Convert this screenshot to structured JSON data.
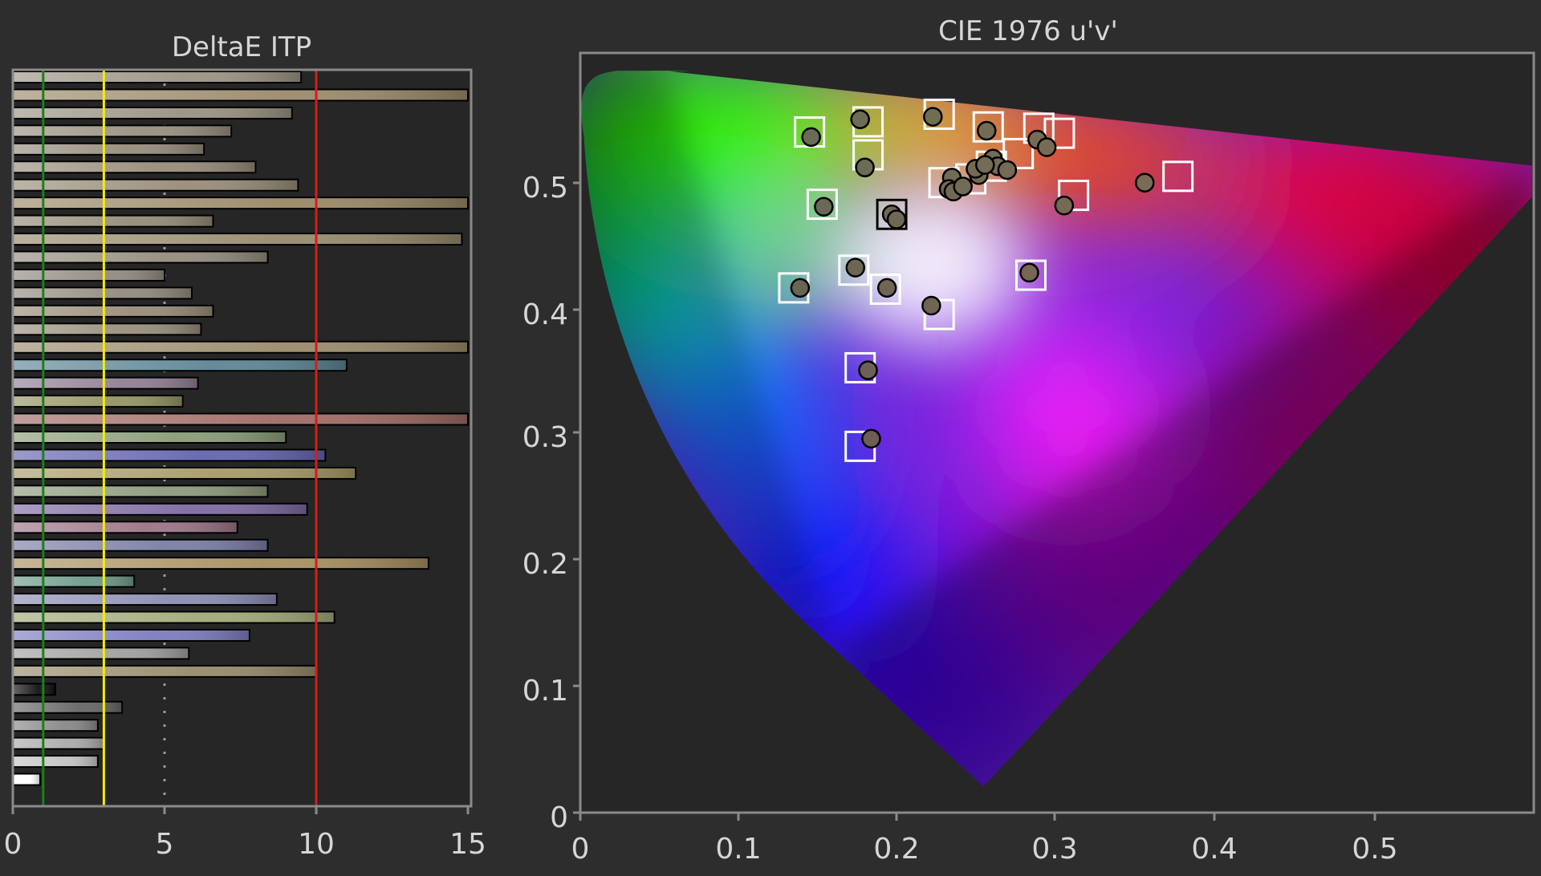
{
  "colors": {
    "background": "#2d2d2d",
    "plot_background": "#262626",
    "frame": "#8a8a8a",
    "good_line": "#1e7d1e",
    "ok_line": "#f3ec00",
    "bad_line": "#d21d1d",
    "target_marker": "#ffffff",
    "measured_marker": "#000000"
  },
  "chart_data": [
    {
      "type": "bar",
      "orientation": "horizontal",
      "title": "DeltaE ITP",
      "xlim": [
        0,
        15
      ],
      "x_ticks": [
        "0",
        "5",
        "10",
        "15"
      ],
      "grid": "vertical at 5",
      "threshold_lines": [
        {
          "value": 1,
          "color": "#1e7d1e"
        },
        {
          "value": 3,
          "color": "#f3ec00"
        },
        {
          "value": 10,
          "color": "#d21d1d"
        }
      ],
      "bars": [
        {
          "value": 9.5,
          "color": "#9c9383"
        },
        {
          "value": 15.0,
          "color": "#9a8a6a"
        },
        {
          "value": 9.2,
          "color": "#9a9282"
        },
        {
          "value": 7.2,
          "color": "#978e7e"
        },
        {
          "value": 6.3,
          "color": "#958c7c"
        },
        {
          "value": 8.0,
          "color": "#968c7a"
        },
        {
          "value": 9.4,
          "color": "#978c76"
        },
        {
          "value": 15.0,
          "color": "#9a8865"
        },
        {
          "value": 6.6,
          "color": "#948b78"
        },
        {
          "value": 14.8,
          "color": "#968a6c"
        },
        {
          "value": 8.4,
          "color": "#948c7e"
        },
        {
          "value": 5.0,
          "color": "#918a80"
        },
        {
          "value": 5.9,
          "color": "#928a7e"
        },
        {
          "value": 6.6,
          "color": "#978c78"
        },
        {
          "value": 6.2,
          "color": "#988e7c"
        },
        {
          "value": 15.0,
          "color": "#9a8a6a"
        },
        {
          "value": 11.0,
          "color": "#5d8595"
        },
        {
          "value": 6.1,
          "color": "#8f7f93"
        },
        {
          "value": 5.6,
          "color": "#939462"
        },
        {
          "value": 15.0,
          "color": "#a06a64"
        },
        {
          "value": 9.0,
          "color": "#8a9c77"
        },
        {
          "value": 10.3,
          "color": "#6464b0"
        },
        {
          "value": 11.3,
          "color": "#a69a68"
        },
        {
          "value": 8.4,
          "color": "#8c9a7a"
        },
        {
          "value": 9.7,
          "color": "#7e6aa0"
        },
        {
          "value": 7.4,
          "color": "#9c7486"
        },
        {
          "value": 8.4,
          "color": "#7a7ea4"
        },
        {
          "value": 13.7,
          "color": "#a89060"
        },
        {
          "value": 4.0,
          "color": "#6e9a88"
        },
        {
          "value": 8.7,
          "color": "#8c8cb4"
        },
        {
          "value": 10.6,
          "color": "#a0a878"
        },
        {
          "value": 7.8,
          "color": "#7c7cc0"
        },
        {
          "value": 5.8,
          "color": "#a0a0a0"
        },
        {
          "value": 10.0,
          "color": "#968a6a"
        },
        {
          "value": 1.4,
          "color": "#111111"
        },
        {
          "value": 3.6,
          "color": "#666666"
        },
        {
          "value": 2.8,
          "color": "#888888"
        },
        {
          "value": 3.0,
          "color": "#aaaaaa"
        },
        {
          "value": 2.8,
          "color": "#c4c4c4"
        },
        {
          "value": 0.9,
          "color": "#ffffff"
        }
      ]
    },
    {
      "type": "scatter",
      "title": "CIE 1976 u'v'",
      "xlim": [
        0,
        0.6
      ],
      "ylim": [
        0,
        0.6
      ],
      "x_ticks": [
        "0",
        "0.1",
        "0.2",
        "0.3",
        "0.4",
        "0.5"
      ],
      "y_ticks": [
        "0",
        "0.1",
        "0.2",
        "0.3",
        "0.4",
        "0.5"
      ],
      "background": "CIE 1976 chromaticity diagram",
      "targets": [
        [
          0.145,
          0.537
        ],
        [
          0.182,
          0.545
        ],
        [
          0.227,
          0.551
        ],
        [
          0.258,
          0.541
        ],
        [
          0.29,
          0.54
        ],
        [
          0.303,
          0.536
        ],
        [
          0.182,
          0.519
        ],
        [
          0.153,
          0.48
        ],
        [
          0.23,
          0.497
        ],
        [
          0.247,
          0.5
        ],
        [
          0.26,
          0.51
        ],
        [
          0.277,
          0.52
        ],
        [
          0.312,
          0.487
        ],
        [
          0.378,
          0.502
        ],
        [
          0.197,
          0.472
        ],
        [
          0.173,
          0.428
        ],
        [
          0.135,
          0.414
        ],
        [
          0.193,
          0.413
        ],
        [
          0.285,
          0.424
        ],
        [
          0.227,
          0.393
        ],
        [
          0.177,
          0.351
        ],
        [
          0.177,
          0.289
        ]
      ],
      "measured": [
        [
          0.146,
          0.533
        ],
        [
          0.177,
          0.547
        ],
        [
          0.223,
          0.549
        ],
        [
          0.257,
          0.538
        ],
        [
          0.289,
          0.531
        ],
        [
          0.295,
          0.525
        ],
        [
          0.18,
          0.509
        ],
        [
          0.154,
          0.478
        ],
        [
          0.235,
          0.501
        ],
        [
          0.233,
          0.492
        ],
        [
          0.236,
          0.49
        ],
        [
          0.242,
          0.494
        ],
        [
          0.252,
          0.503
        ],
        [
          0.25,
          0.508
        ],
        [
          0.261,
          0.516
        ],
        [
          0.264,
          0.51
        ],
        [
          0.27,
          0.507
        ],
        [
          0.256,
          0.511
        ],
        [
          0.357,
          0.497
        ],
        [
          0.306,
          0.479
        ],
        [
          0.197,
          0.472
        ],
        [
          0.2,
          0.468
        ],
        [
          0.174,
          0.43
        ],
        [
          0.139,
          0.414
        ],
        [
          0.194,
          0.414
        ],
        [
          0.284,
          0.426
        ],
        [
          0.222,
          0.4
        ],
        [
          0.182,
          0.349
        ],
        [
          0.184,
          0.295
        ]
      ]
    }
  ]
}
